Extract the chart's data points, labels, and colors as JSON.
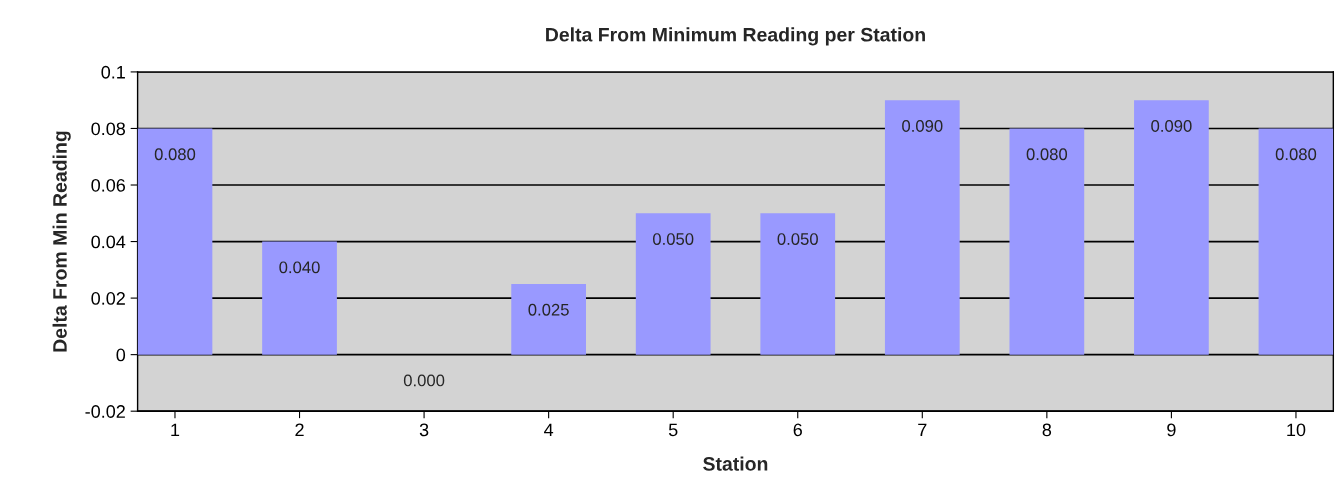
{
  "chart_data": {
    "type": "bar",
    "title": "Delta From Minimum Reading per Station",
    "xlabel": "Station",
    "ylabel": "Delta From Min Reading",
    "categories": [
      "1",
      "2",
      "3",
      "4",
      "5",
      "6",
      "7",
      "8",
      "9",
      "10"
    ],
    "values": [
      0.08,
      0.04,
      0.0,
      0.025,
      0.05,
      0.05,
      0.09,
      0.08,
      0.09,
      0.08
    ],
    "value_labels": [
      "0.080",
      "0.040",
      "0.000",
      "0.025",
      "0.050",
      "0.050",
      "0.090",
      "0.080",
      "0.090",
      "0.080"
    ],
    "color": "#9999ff",
    "ylim": [
      -0.02,
      0.1
    ],
    "yticks": [
      -0.02,
      0,
      0.02,
      0.04,
      0.06,
      0.08,
      0.1
    ],
    "grid": "y",
    "legend": false
  }
}
